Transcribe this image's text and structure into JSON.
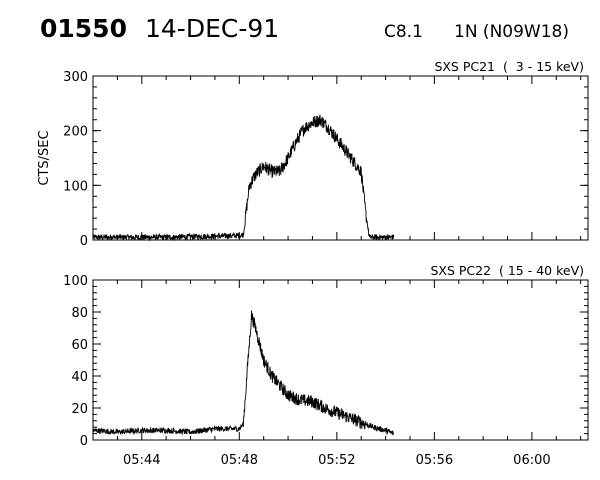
{
  "header": {
    "event_id": "01550",
    "date": "14-DEC-91",
    "flare_class": "C8.1",
    "flare_location": "1N (N09W18)"
  },
  "chart_data": [
    {
      "type": "line",
      "title": "SXS PC21  (  3 - 15 keV)",
      "ylabel": "CTS/SEC",
      "xlabel": "",
      "ylim": [
        0,
        300
      ],
      "yticks": [
        0,
        100,
        200,
        300
      ],
      "xlim_minutes": [
        42.0,
        62.3
      ],
      "grid": false,
      "series": [
        {
          "x": [
            "05:42",
            "05:43",
            "05:44",
            "05:45",
            "05:46",
            "05:47",
            "05:48",
            "05:48:10",
            "05:48:25",
            "05:48:40",
            "05:49",
            "05:49:20",
            "05:49:40",
            "05:50",
            "05:50:20",
            "05:50:40",
            "05:51",
            "05:51:20",
            "05:51:40",
            "05:52",
            "05:52:20",
            "05:52:40",
            "05:53",
            "05:53:10",
            "05:53:20",
            "05:53:30",
            "05:54",
            "05:54:20"
          ],
          "values": [
            5,
            5,
            5,
            5,
            6,
            7,
            8,
            10,
            100,
            120,
            135,
            125,
            125,
            150,
            180,
            205,
            215,
            220,
            205,
            185,
            165,
            145,
            125,
            55,
            5,
            5,
            5,
            5
          ]
        }
      ]
    },
    {
      "type": "line",
      "title": "SXS PC22  ( 15 - 40 keV)",
      "ylabel": "",
      "xlabel": "",
      "ylim": [
        0,
        100
      ],
      "yticks": [
        0,
        20,
        40,
        60,
        80,
        100
      ],
      "xlim_minutes": [
        42.0,
        62.3
      ],
      "xticks": [
        "05:44",
        "05:48",
        "05:52",
        "05:56",
        "06:00"
      ],
      "grid": false,
      "series": [
        {
          "x": [
            "05:42",
            "05:43",
            "05:44",
            "05:45",
            "05:46",
            "05:47",
            "05:48",
            "05:48:10",
            "05:48:20",
            "05:48:30",
            "05:48:40",
            "05:48:50",
            "05:49",
            "05:49:20",
            "05:49:40",
            "05:50",
            "05:50:30",
            "05:51",
            "05:51:30",
            "05:52",
            "05:52:30",
            "05:53",
            "05:53:30",
            "05:54",
            "05:54:20"
          ],
          "values": [
            6,
            5,
            6,
            6,
            5,
            7,
            7,
            10,
            45,
            78,
            70,
            60,
            50,
            40,
            34,
            28,
            25,
            24,
            20,
            17,
            14,
            11,
            8,
            6,
            4
          ]
        }
      ]
    }
  ]
}
